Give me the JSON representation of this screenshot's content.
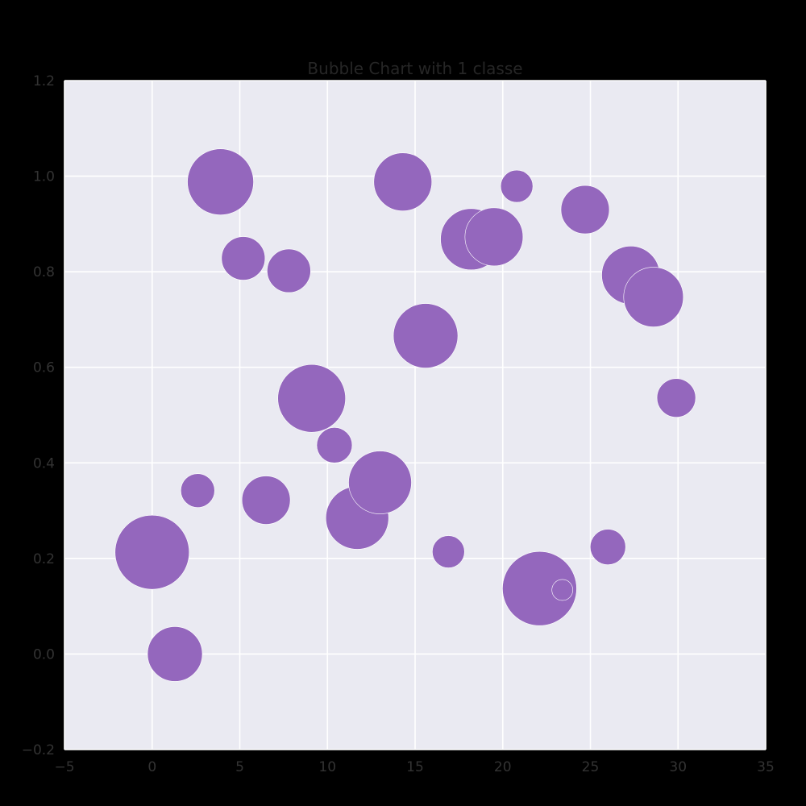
{
  "chart_data": {
    "type": "scatter",
    "title": "Bubble Chart with 1 classe",
    "xlabel": "",
    "ylabel": "",
    "xlim": [
      -5,
      35
    ],
    "ylim": [
      -0.2,
      1.2
    ],
    "x_ticks": [
      -5,
      0,
      5,
      10,
      15,
      20,
      25,
      30,
      35
    ],
    "y_ticks": [
      -0.2,
      0.0,
      0.2,
      0.4,
      0.6,
      0.8,
      1.0,
      1.2
    ],
    "x_tick_labels": [
      "−5",
      "0",
      "5",
      "10",
      "15",
      "20",
      "25",
      "30",
      "35"
    ],
    "y_tick_labels": [
      "−0.2",
      "0.0",
      "0.2",
      "0.4",
      "0.6",
      "0.8",
      "1.0",
      "1.2"
    ],
    "grid": true,
    "colors": {
      "bubble": "#9467bd",
      "plot_background": "#eaeaf2",
      "grid": "#ffffff",
      "figure_background": "#000000"
    },
    "series": [
      {
        "points": [
          {
            "x": 0.0,
            "y": 0.213,
            "size": 46
          },
          {
            "x": 1.3,
            "y": 0.0,
            "size": 34
          },
          {
            "x": 2.6,
            "y": 0.342,
            "size": 21
          },
          {
            "x": 3.9,
            "y": 0.988,
            "size": 41
          },
          {
            "x": 5.2,
            "y": 0.828,
            "size": 27
          },
          {
            "x": 6.5,
            "y": 0.322,
            "size": 30
          },
          {
            "x": 7.8,
            "y": 0.802,
            "size": 27
          },
          {
            "x": 9.1,
            "y": 0.535,
            "size": 42
          },
          {
            "x": 10.4,
            "y": 0.437,
            "size": 22
          },
          {
            "x": 11.7,
            "y": 0.285,
            "size": 39
          },
          {
            "x": 13.0,
            "y": 0.359,
            "size": 39
          },
          {
            "x": 14.3,
            "y": 0.988,
            "size": 36
          },
          {
            "x": 15.6,
            "y": 0.666,
            "size": 40
          },
          {
            "x": 16.9,
            "y": 0.214,
            "size": 20
          },
          {
            "x": 18.2,
            "y": 0.868,
            "size": 38
          },
          {
            "x": 19.5,
            "y": 0.873,
            "size": 36
          },
          {
            "x": 20.8,
            "y": 0.979,
            "size": 20
          },
          {
            "x": 22.1,
            "y": 0.137,
            "size": 46
          },
          {
            "x": 23.4,
            "y": 0.134,
            "size": 13
          },
          {
            "x": 24.7,
            "y": 0.93,
            "size": 30
          },
          {
            "x": 26.0,
            "y": 0.224,
            "size": 22
          },
          {
            "x": 27.3,
            "y": 0.793,
            "size": 36
          },
          {
            "x": 28.6,
            "y": 0.747,
            "size": 37
          },
          {
            "x": 29.9,
            "y": 0.536,
            "size": 24
          }
        ]
      }
    ]
  }
}
